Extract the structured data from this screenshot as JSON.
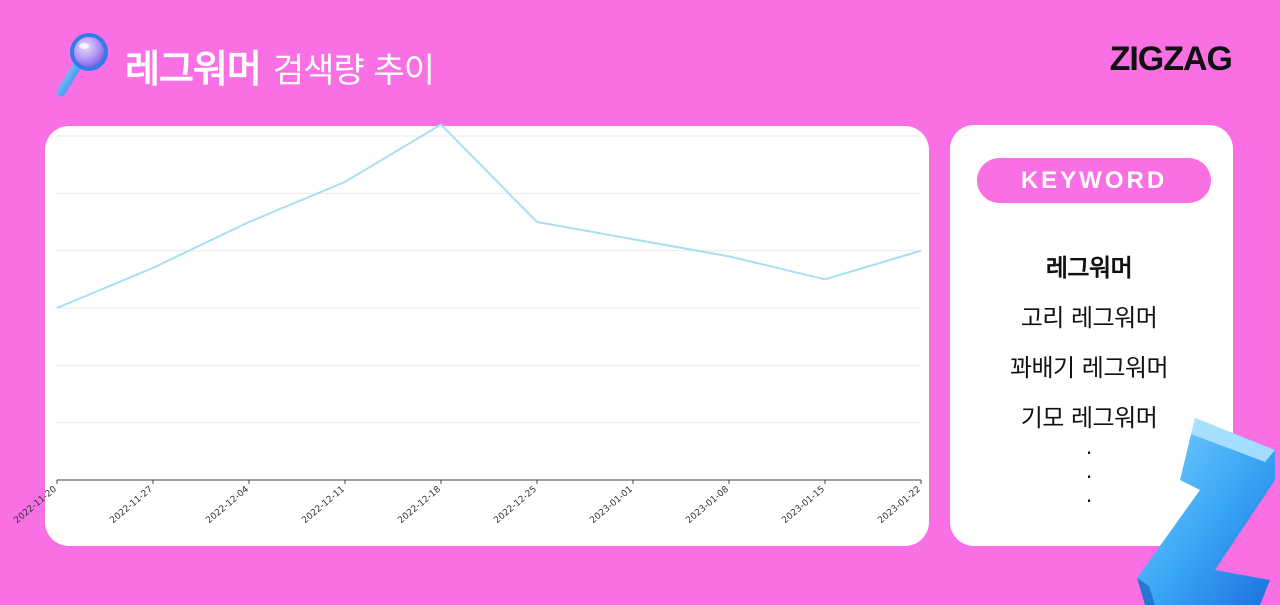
{
  "header": {
    "title_main": "레그워머",
    "title_sub": "검색량 추이"
  },
  "logo": {
    "text": "ZIGZAG"
  },
  "sidebar": {
    "badge": "KEYWORD",
    "keywords": [
      "레그워머",
      "고리 레그워머",
      "꽈배기 레그워머",
      "기모 레그워머"
    ],
    "more": [
      "·",
      "·",
      "·"
    ]
  },
  "colors": {
    "background": "#f96fe4",
    "line": "#a8dff0",
    "grid": "#e9e9e9",
    "axis": "#444444"
  },
  "chart_data": {
    "type": "line",
    "title": "",
    "xlabel": "",
    "ylabel": "",
    "x": [
      "2022-11-20",
      "2022-11-27",
      "2022-12-04",
      "2022-12-11",
      "2022-12-18",
      "2022-12-25",
      "2023-01-01",
      "2023-01-08",
      "2023-01-15",
      "2023-01-22"
    ],
    "series": [
      {
        "values": [
          30,
          37,
          45,
          52,
          62,
          45,
          42,
          39,
          35,
          40
        ]
      }
    ],
    "ylim": [
      0,
      60
    ],
    "grid": true,
    "legend": "none"
  }
}
